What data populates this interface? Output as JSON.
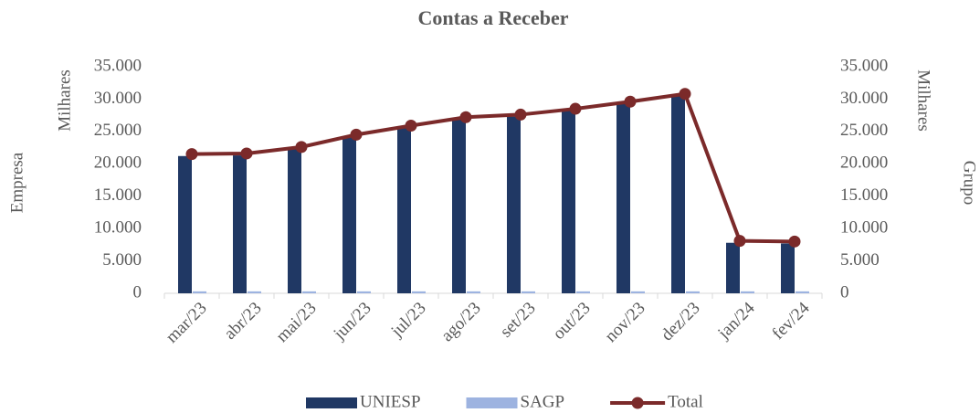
{
  "chart_data": {
    "type": "bar",
    "title": "Contas a Receber",
    "ylabel": "Empresa",
    "y_unit_label": "Milhares",
    "y2label": "Grupo",
    "y2_unit_label": "Milhares",
    "categories": [
      "mar/23",
      "abr/23",
      "mai/23",
      "jun/23",
      "jul/23",
      "ago/23",
      "set/23",
      "out/23",
      "nov/23",
      "dez/23",
      "jan/24",
      "fev/24"
    ],
    "series": [
      {
        "name": "UNIESP",
        "type": "bar",
        "color": "#203864",
        "values": [
          21200,
          21300,
          22300,
          24200,
          25600,
          26900,
          27300,
          28200,
          29300,
          30500,
          7800,
          7700
        ]
      },
      {
        "name": "SAGP",
        "type": "bar",
        "color": "#9db3e0",
        "values": [
          300,
          300,
          300,
          300,
          300,
          300,
          300,
          300,
          300,
          300,
          300,
          300
        ]
      },
      {
        "name": "Total",
        "type": "line",
        "axis": "y2",
        "color": "#7b2a2a",
        "values": [
          21500,
          21600,
          22600,
          24500,
          25900,
          27200,
          27600,
          28500,
          29600,
          30800,
          8100,
          8000
        ]
      }
    ],
    "ylim": [
      0,
      35000
    ],
    "yticks": [
      0,
      {
        "value": 5000,
        "label": "5.000"
      },
      {
        "value": 10000,
        "label": "10.000"
      },
      {
        "value": 15000,
        "label": "15.000"
      },
      {
        "value": 20000,
        "label": "20.000"
      },
      {
        "value": 25000,
        "label": "25.000"
      },
      {
        "value": 30000,
        "label": "30.000"
      },
      {
        "value": 35000,
        "label": "35.000"
      }
    ],
    "y2lim": [
      0,
      35000
    ],
    "y2ticks": [
      0,
      {
        "value": 5000,
        "label": "5.000"
      },
      {
        "value": 10000,
        "label": "10.000"
      },
      {
        "value": 15000,
        "label": "15.000"
      },
      {
        "value": 20000,
        "label": "20.000"
      },
      {
        "value": 25000,
        "label": "25.000"
      },
      {
        "value": 30000,
        "label": "30.000"
      },
      {
        "value": 35000,
        "label": "35.000"
      }
    ],
    "legend": "bottom"
  }
}
